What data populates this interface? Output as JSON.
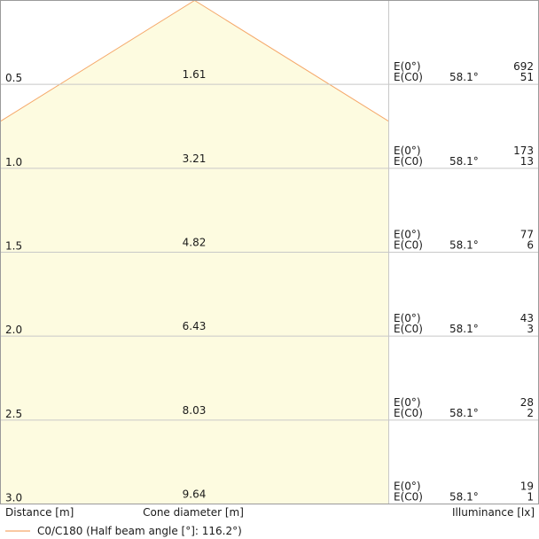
{
  "chart_data": {
    "type": "area",
    "distance_labels": [
      "0.5",
      "1.0",
      "1.5",
      "2.0",
      "2.5",
      "3.0"
    ],
    "cone_diameters": [
      "1.61",
      "3.21",
      "4.82",
      "6.43",
      "8.03",
      "9.64"
    ],
    "half_angle_labels": [
      "58.1°",
      "58.1°",
      "58.1°",
      "58.1°",
      "58.1°",
      "58.1°"
    ],
    "e0_values": [
      "692",
      "173",
      "77",
      "43",
      "28",
      "19"
    ],
    "ec0_values": [
      "51",
      "13",
      "6",
      "3",
      "2",
      "1"
    ],
    "e0_label": "E(0°)",
    "ec0_label": "E(C0)",
    "xlabel_distance": "Distance [m]",
    "xlabel_cone": "Cone diameter [m]",
    "xlabel_illuminance": "Illuminance [lx]",
    "legend": "C0/C180 (Half beam angle [°]: 116.2°)",
    "half_beam_angle": 116.2,
    "colors": {
      "cone_fill": "#fdfbe0",
      "cone_edge": "#f5a86a",
      "grid": "#c8c8c8",
      "frame": "#9a9a9a"
    }
  }
}
